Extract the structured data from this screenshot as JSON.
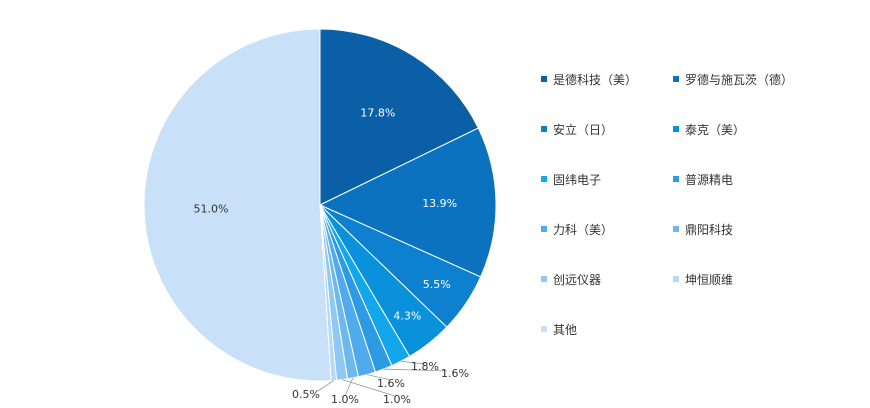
{
  "chart_data": {
    "type": "pie",
    "categories": [
      "是德科技（美）",
      "罗德与施瓦茨（德）",
      "安立（日）",
      "泰克（美）",
      "固纬电子",
      "普源精电",
      "力科（美）",
      "鼎阳科技",
      "创远仪器",
      "坤恒顺维",
      "其他"
    ],
    "values": [
      17.8,
      13.9,
      5.5,
      4.3,
      1.8,
      1.6,
      1.6,
      1.0,
      1.0,
      0.5,
      51.0
    ],
    "data_labels": [
      "17.8%",
      "13.9%",
      "5.5%",
      "4.3%",
      "1.8%",
      "1.6%",
      "1.6%",
      "1.0%",
      "1.0%",
      "0.5%",
      "51.0%"
    ],
    "colors": [
      "#0a5fa6",
      "#0b72bf",
      "#0d81cf",
      "#0991dc",
      "#12a6ea",
      "#2d9be3",
      "#4fabec",
      "#6db9ee",
      "#8fc9f3",
      "#b4daf8",
      "#c9e1f8"
    ],
    "legend_position": "right",
    "start_angle": "12 o'clock, clockwise"
  }
}
